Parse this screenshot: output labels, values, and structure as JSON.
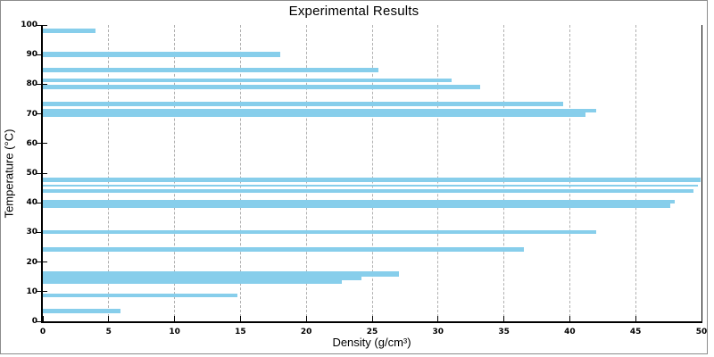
{
  "title": "Experimental Results",
  "chart_data": {
    "type": "bar",
    "orientation": "horizontal",
    "title": "Experimental Results",
    "xlabel": "Density (g/cm³)",
    "ylabel": "Temperature (°C)",
    "xlim": [
      0,
      50
    ],
    "ylim": [
      0,
      100
    ],
    "xticks": [
      0,
      5,
      10,
      15,
      20,
      25,
      30,
      35,
      40,
      45,
      50
    ],
    "yticks": [
      0,
      10,
      20,
      30,
      40,
      50,
      60,
      70,
      80,
      90,
      100
    ],
    "grid": "vertical-dashed-only",
    "legend": "none",
    "bar_color": "#87CEEB",
    "grid_color": "#b0b0b0",
    "axis_color": "#000000",
    "figure_border_color": "#8c8c8c",
    "points": [
      {
        "temperature": 98.0,
        "density": 4.0,
        "bar_height": 1.4
      },
      {
        "temperature": 90.0,
        "density": 18.0,
        "bar_height": 1.8
      },
      {
        "temperature": 84.8,
        "density": 25.5,
        "bar_height": 1.4
      },
      {
        "temperature": 81.3,
        "density": 31.0,
        "bar_height": 1.2
      },
      {
        "temperature": 79.1,
        "density": 33.2,
        "bar_height": 1.4
      },
      {
        "temperature": 73.4,
        "density": 39.5,
        "bar_height": 1.5
      },
      {
        "temperature": 71.0,
        "density": 42.0,
        "bar_height": 1.2
      },
      {
        "temperature": 69.6,
        "density": 41.2,
        "bar_height": 1.5
      },
      {
        "temperature": 47.8,
        "density": 49.9,
        "bar_height": 1.6
      },
      {
        "temperature": 45.8,
        "density": 49.7,
        "bar_height": 0.8
      },
      {
        "temperature": 44.0,
        "density": 49.4,
        "bar_height": 1.4
      },
      {
        "temperature": 40.4,
        "density": 48.0,
        "bar_height": 1.2
      },
      {
        "temperature": 39.1,
        "density": 47.6,
        "bar_height": 1.5
      },
      {
        "temperature": 30.1,
        "density": 42.0,
        "bar_height": 1.3
      },
      {
        "temperature": 24.3,
        "density": 36.5,
        "bar_height": 1.4
      },
      {
        "temperature": 15.9,
        "density": 27.0,
        "bar_height": 1.9
      },
      {
        "temperature": 14.6,
        "density": 24.2,
        "bar_height": 1.2
      },
      {
        "temperature": 13.3,
        "density": 22.7,
        "bar_height": 1.4
      },
      {
        "temperature": 8.7,
        "density": 14.8,
        "bar_height": 1.1
      },
      {
        "temperature": 3.4,
        "density": 5.9,
        "bar_height": 1.4
      }
    ]
  }
}
